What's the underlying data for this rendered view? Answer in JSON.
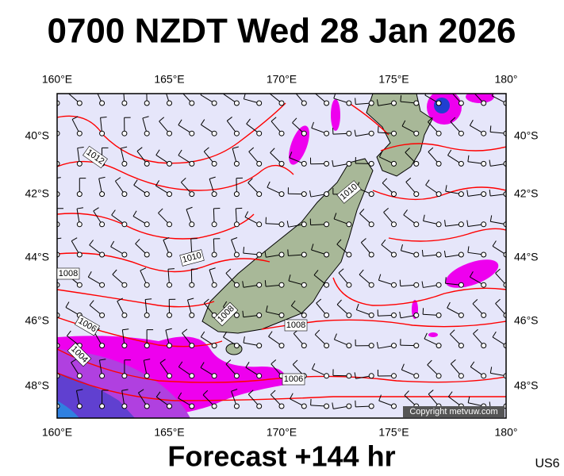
{
  "header": {
    "title": "0700 NZDT Wed 28 Jan 2026"
  },
  "map": {
    "lon_labels": [
      "160°E",
      "165°E",
      "170°E",
      "175°E",
      "180°"
    ],
    "lat_labels": [
      "40°S",
      "42°S",
      "44°S",
      "46°S",
      "48°S"
    ],
    "isobar_labels": [
      "1012",
      "1010",
      "1010",
      "1008",
      "1006",
      "1004",
      "1008",
      "1008",
      "1006"
    ],
    "copyright": "Copyright metvuw.com"
  },
  "footer": {
    "forecast": "Forecast +144 hr",
    "code": "US6"
  }
}
